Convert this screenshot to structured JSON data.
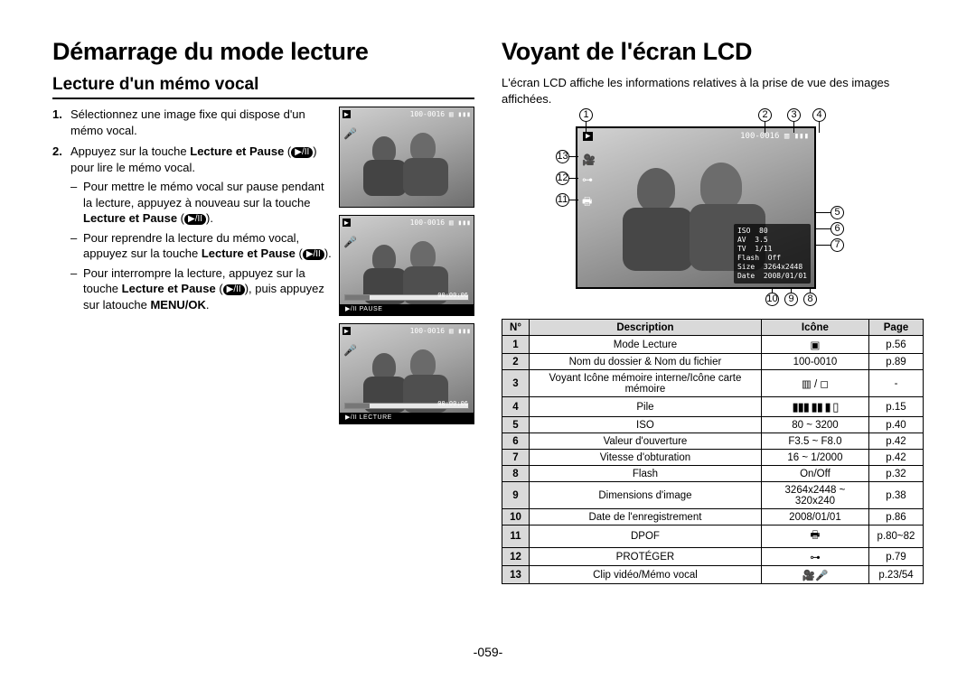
{
  "page_number": "-059-",
  "left": {
    "title": "Démarrage du mode lecture",
    "subtitle": "Lecture d'un mémo vocal",
    "steps": {
      "s1_num": "1.",
      "s1": "Sélectionnez une image fixe qui dispose d'un mémo vocal.",
      "s2_num": "2.",
      "s2_a": "Appuyez sur la touche ",
      "s2_b": "Lecture et Pause",
      "s2_c": " pour lire le mémo vocal.",
      "sub1_a": "Pour mettre le mémo vocal sur pause pendant la lecture, appuyez à nouveau sur la touche ",
      "sub1_b": "Lecture et Pause",
      "sub2_a": "Pour reprendre la lecture du mémo vocal, appuyez sur la touche ",
      "sub2_b": "Lecture et Pause",
      "sub3_a": "Pour interrompre la lecture, appuyez sur la touche ",
      "sub3_b": "Lecture et Pause",
      "sub3_c": ", puis appuyez sur latouche ",
      "sub3_d": "MENU/OK"
    },
    "thumbs": {
      "filecounter": "100-0016",
      "time": "00:00:06",
      "pause": "▶/II  PAUSE",
      "lecture": "▶/II  LECTURE"
    }
  },
  "right": {
    "title": "Voyant de l'écran LCD",
    "intro": "L'écran LCD affiche les informations relatives à la prise de vue des images affichées.",
    "lcd": {
      "filecounter": "100-0016",
      "infoblock": "ISO  80\nAV  3.5\nTV  1/11\nFlash  Off\nSize  3264x2448\nDate  2008/01/01"
    },
    "table": {
      "headers": {
        "num": "N°",
        "desc": "Description",
        "icon": "Icône",
        "page": "Page"
      },
      "rows": [
        {
          "n": "1",
          "d": "Mode Lecture",
          "i": "▣",
          "p": "p.56"
        },
        {
          "n": "2",
          "d": "Nom du dossier & Nom du fichier",
          "i": "100-0010",
          "p": "p.89"
        },
        {
          "n": "3",
          "d": "Voyant Icône mémoire interne/Icône carte mémoire",
          "i": "▥ / ◻",
          "p": "-"
        },
        {
          "n": "4",
          "d": "Pile",
          "i": "▮▮▮ ▮▮ ▮ ▯",
          "p": "p.15"
        },
        {
          "n": "5",
          "d": "ISO",
          "i": "80 ~ 3200",
          "p": "p.40"
        },
        {
          "n": "6",
          "d": "Valeur d'ouverture",
          "i": "F3.5 ~ F8.0",
          "p": "p.42"
        },
        {
          "n": "7",
          "d": "Vitesse d'obturation",
          "i": "16 ~ 1/2000",
          "p": "p.42"
        },
        {
          "n": "8",
          "d": "Flash",
          "i": "On/Off",
          "p": "p.32"
        },
        {
          "n": "9",
          "d": "Dimensions d'image",
          "i": "3264x2448 ~ 320x240",
          "p": "p.38"
        },
        {
          "n": "10",
          "d": "Date de l'enregistrement",
          "i": "2008/01/01",
          "p": "p.86"
        },
        {
          "n": "11",
          "d": "DPOF",
          "i": "🖶",
          "p": "p.80~82"
        },
        {
          "n": "12",
          "d": "PROTÉGER",
          "i": "⊶",
          "p": "p.79"
        },
        {
          "n": "13",
          "d": "Clip vidéo/Mémo vocal",
          "i": "🎥🎤",
          "p": "p.23/54"
        }
      ]
    },
    "callouts": {
      "c1": "1",
      "c2": "2",
      "c3": "3",
      "c4": "4",
      "c5": "5",
      "c6": "6",
      "c7": "7",
      "c8": "8",
      "c9": "9",
      "c10": "10",
      "c11": "11",
      "c12": "12",
      "c13": "13"
    }
  }
}
